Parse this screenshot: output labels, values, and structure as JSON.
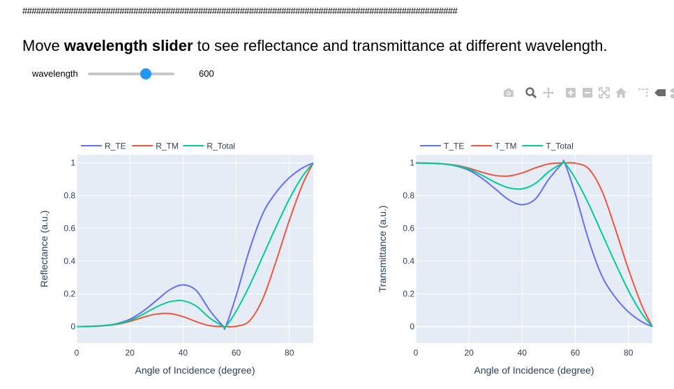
{
  "header": {
    "hash_line": "##############################################################################################",
    "headline_pre": "Move ",
    "headline_bold": "wavelength slider",
    "headline_post": " to see reflectance and transmittance at different wavelength."
  },
  "slider": {
    "label": "wavelength",
    "value": "600",
    "position_fraction": 0.67
  },
  "modebar": {
    "icons": [
      "camera-icon",
      "zoom-icon",
      "pan-icon",
      "zoom-in-icon",
      "zoom-out-icon",
      "autoscale-icon",
      "home-icon",
      "spike-lines-icon",
      "hover-closest-icon",
      "hover-compare-icon"
    ]
  },
  "colors": {
    "series1": "#636efa",
    "series2": "#ef553b",
    "series3": "#00cc96",
    "plot_bg": "#e5ecf6",
    "axis_text": "#2a3f5f"
  },
  "chart_data": [
    {
      "type": "line",
      "xlabel": "Angle of Incidence (degree)",
      "ylabel": "Reflectance (a.u.)",
      "xlim": [
        0,
        89
      ],
      "ylim": [
        -0.1,
        1.05
      ],
      "xticks": [
        0,
        20,
        40,
        60,
        80
      ],
      "yticks": [
        0,
        0.2,
        0.4,
        0.6,
        0.8,
        1
      ],
      "ytick_labels": [
        "0",
        "0.2",
        "0.4",
        "0.6",
        "0.8",
        "1"
      ],
      "grid": true,
      "legend": "top-left, horizontal",
      "x": [
        0,
        5,
        10,
        15,
        20,
        25,
        30,
        35,
        40,
        45,
        50,
        55,
        56,
        60,
        65,
        70,
        75,
        80,
        85,
        89
      ],
      "series": [
        {
          "name": "R_TE",
          "values": [
            0,
            0.002,
            0.006,
            0.018,
            0.045,
            0.095,
            0.16,
            0.225,
            0.255,
            0.22,
            0.1,
            0.005,
            0,
            0.19,
            0.47,
            0.69,
            0.82,
            0.91,
            0.97,
            1.0
          ]
        },
        {
          "name": "R_TM",
          "values": [
            0,
            0.001,
            0.005,
            0.014,
            0.032,
            0.057,
            0.077,
            0.08,
            0.061,
            0.03,
            0.006,
            0,
            0,
            0.002,
            0.035,
            0.17,
            0.4,
            0.65,
            0.87,
            1.0
          ]
        },
        {
          "name": "R_Total",
          "values": [
            0,
            0.002,
            0.006,
            0.016,
            0.038,
            0.076,
            0.12,
            0.152,
            0.158,
            0.125,
            0.053,
            0.003,
            0,
            0.095,
            0.25,
            0.43,
            0.61,
            0.78,
            0.92,
            1.0
          ]
        }
      ]
    },
    {
      "type": "line",
      "xlabel": "Angle of Incidence (degree)",
      "ylabel": "Transmittance (a.u.)",
      "xlim": [
        0,
        89
      ],
      "ylim": [
        -0.1,
        1.05
      ],
      "xticks": [
        0,
        20,
        40,
        60,
        80
      ],
      "yticks": [
        0,
        0.2,
        0.4,
        0.6,
        0.8,
        1
      ],
      "ytick_labels": [
        "0",
        "0.2",
        "0.4",
        "0.6",
        "0.8",
        "1"
      ],
      "grid": true,
      "legend": "top-left, horizontal",
      "x": [
        0,
        5,
        10,
        15,
        20,
        25,
        30,
        35,
        40,
        45,
        50,
        55,
        56,
        60,
        65,
        70,
        75,
        80,
        85,
        89
      ],
      "series": [
        {
          "name": "T_TE",
          "values": [
            1,
            0.998,
            0.994,
            0.982,
            0.955,
            0.905,
            0.84,
            0.775,
            0.745,
            0.78,
            0.9,
            0.995,
            1,
            0.81,
            0.53,
            0.31,
            0.18,
            0.09,
            0.03,
            0
          ]
        },
        {
          "name": "T_TM",
          "values": [
            1,
            0.999,
            0.995,
            0.986,
            0.968,
            0.943,
            0.923,
            0.92,
            0.939,
            0.97,
            0.994,
            1,
            1,
            0.998,
            0.965,
            0.83,
            0.6,
            0.35,
            0.13,
            0
          ]
        },
        {
          "name": "T_Total",
          "values": [
            1,
            0.998,
            0.994,
            0.984,
            0.962,
            0.924,
            0.88,
            0.848,
            0.842,
            0.875,
            0.947,
            0.997,
            1,
            0.905,
            0.75,
            0.57,
            0.39,
            0.22,
            0.08,
            0
          ]
        }
      ]
    }
  ]
}
